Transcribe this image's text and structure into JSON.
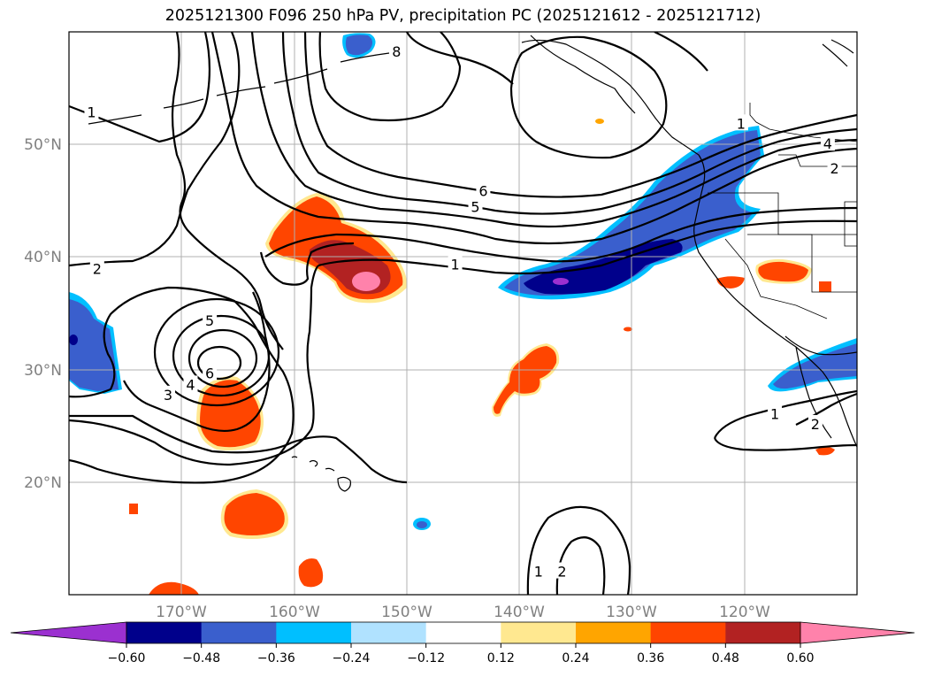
{
  "title": "2025121300 F096 250 hPa PV, precipitation PC (2025121612 - 2025121712)",
  "map": {
    "extent": {
      "lon_min": -180,
      "lon_max": -110,
      "lat_min": 10,
      "lat_max": 60
    },
    "lat_gridlines": [
      20,
      30,
      40,
      50
    ],
    "lon_gridlines": [
      -170,
      -160,
      -150,
      -140,
      -130,
      -120
    ],
    "lat_labels": [
      "20°N",
      "30°N",
      "40°N",
      "50°N"
    ],
    "lon_labels": [
      "170°W",
      "160°W",
      "150°W",
      "140°W",
      "130°W",
      "120°W"
    ]
  },
  "contour_labels": [
    {
      "text": "1",
      "lon": -178,
      "lat": 52.8
    },
    {
      "text": "2",
      "lon": -177.5,
      "lat": 38.9
    },
    {
      "text": "5",
      "lon": -167.5,
      "lat": 34.3
    },
    {
      "text": "6",
      "lon": -167.5,
      "lat": 29.6
    },
    {
      "text": "4",
      "lon": -169.2,
      "lat": 28.6
    },
    {
      "text": "3",
      "lon": -171.2,
      "lat": 27.7
    },
    {
      "text": "6",
      "lon": -143.2,
      "lat": 45.8
    },
    {
      "text": "5",
      "lon": -143.9,
      "lat": 44.4
    },
    {
      "text": "1",
      "lon": -145.7,
      "lat": 39.3
    },
    {
      "text": "1",
      "lon": -120.3,
      "lat": 51.8
    },
    {
      "text": "4",
      "lon": -112.6,
      "lat": 50.0
    },
    {
      "text": "2",
      "lon": -112.0,
      "lat": 47.8
    },
    {
      "text": "8",
      "lon": -150.9,
      "lat": 58.2
    },
    {
      "text": "1",
      "lon": -117.3,
      "lat": 26.0
    },
    {
      "text": "2",
      "lon": -113.7,
      "lat": 25.1
    },
    {
      "text": "1",
      "lon": -138.3,
      "lat": 12.0
    },
    {
      "text": "2",
      "lon": -136.2,
      "lat": 12.0
    }
  ],
  "colorbar": {
    "ticks": [
      "−0.60",
      "−0.48",
      "−0.36",
      "−0.24",
      "−0.12",
      "0.12",
      "0.24",
      "0.36",
      "0.48",
      "0.60"
    ],
    "colors": [
      "#9b30d0",
      "#00008b",
      "#3a5fcd",
      "#00bfff",
      "#b0e2ff",
      "#ffffff",
      "#ffe890",
      "#ffa500",
      "#ff4500",
      "#b22222",
      "#ff82ab"
    ]
  }
}
